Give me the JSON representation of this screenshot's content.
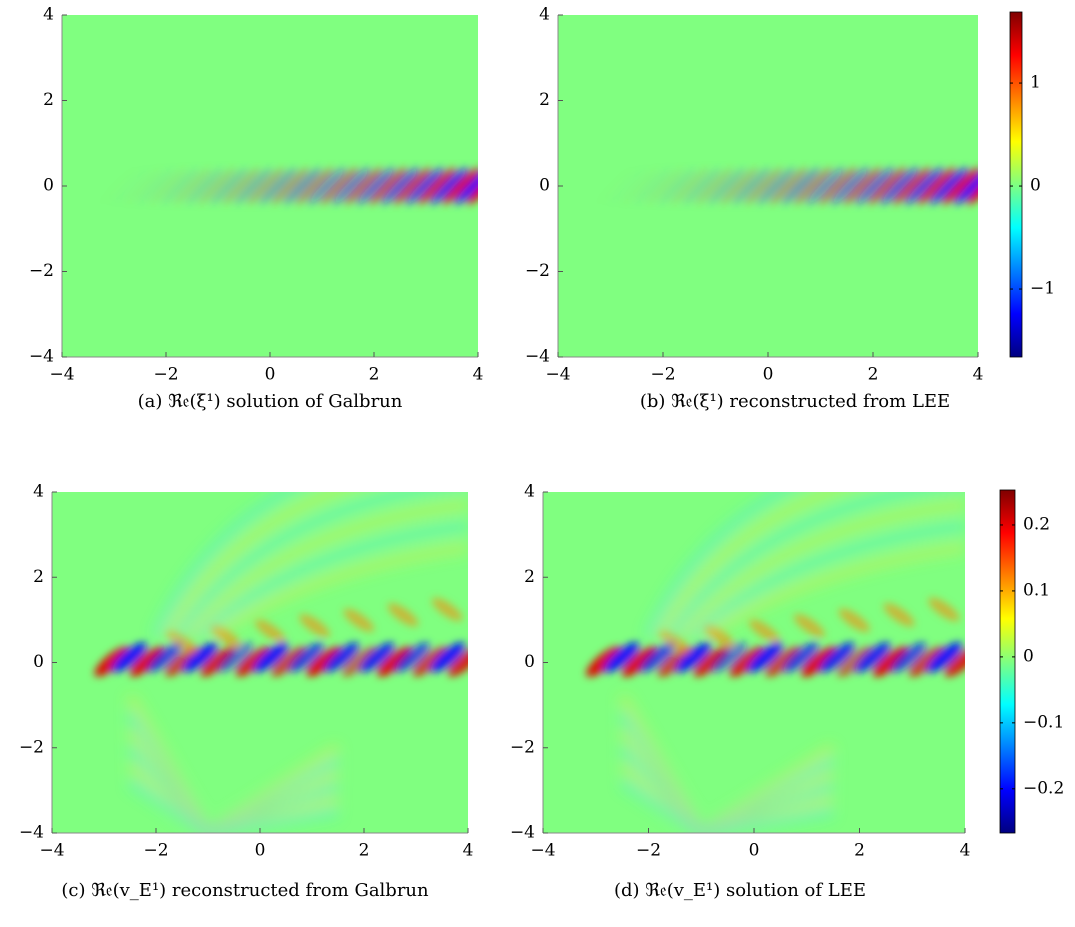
{
  "chart_data": [
    {
      "type": "heatmap",
      "colormap": "jet",
      "caption": "(a) ℜ𝔢(ξ¹) solution of Galbrun",
      "xlim": [
        -4,
        4
      ],
      "ylim": [
        -4,
        4
      ],
      "xticks": [
        {
          "value": -4,
          "label": "−4"
        },
        {
          "value": -2,
          "label": "−2"
        },
        0,
        2,
        4
      ],
      "yticks": [
        {
          "value": -4,
          "label": "−4"
        },
        {
          "value": -2,
          "label": "−2"
        },
        0,
        2,
        4
      ]
    },
    {
      "type": "heatmap",
      "colormap": "jet",
      "caption": "(b) ℜ𝔢(ξ¹) reconstructed from LEE",
      "xlim": [
        -4,
        4
      ],
      "ylim": [
        -4,
        4
      ],
      "xticks": [
        {
          "value": -4,
          "label": "−4"
        },
        {
          "value": -2,
          "label": "−2"
        },
        0,
        2,
        4
      ],
      "yticks": [
        {
          "value": -4,
          "label": "−4"
        },
        {
          "value": -2,
          "label": "−2"
        },
        0,
        2,
        4
      ],
      "colorbar": {
        "clim": [
          -1.66,
          1.69
        ],
        "ticks": [
          {
            "value": -1,
            "label": "−1"
          },
          0,
          1
        ]
      }
    },
    {
      "type": "heatmap",
      "colormap": "jet",
      "caption": "(c) ℜ𝔢(v_E¹) reconstructed from Galbrun",
      "xlim": [
        -4,
        4
      ],
      "ylim": [
        -4,
        4
      ],
      "xticks": [
        {
          "value": -4,
          "label": "−4"
        },
        {
          "value": -2,
          "label": "−2"
        },
        0,
        2,
        4
      ],
      "yticks": [
        {
          "value": -4,
          "label": "−4"
        },
        {
          "value": -2,
          "label": "−2"
        },
        0,
        2,
        4
      ]
    },
    {
      "type": "heatmap",
      "colormap": "jet",
      "caption": "(d) ℜ𝔢(v_E¹) solution of LEE",
      "xlim": [
        -4,
        4
      ],
      "ylim": [
        -4,
        4
      ],
      "xticks": [
        {
          "value": -4,
          "label": "−4"
        },
        {
          "value": -2,
          "label": "−2"
        },
        0,
        2,
        4
      ],
      "yticks": [
        {
          "value": -4,
          "label": "−4"
        },
        {
          "value": -2,
          "label": "−2"
        },
        0,
        2,
        4
      ],
      "colorbar": {
        "clim": [
          -0.267,
          0.253
        ],
        "ticks": [
          {
            "value": -0.2,
            "label": "−0.2"
          },
          {
            "value": -0.1,
            "label": "−0.1"
          },
          0,
          0.1,
          0.2
        ]
      }
    }
  ]
}
